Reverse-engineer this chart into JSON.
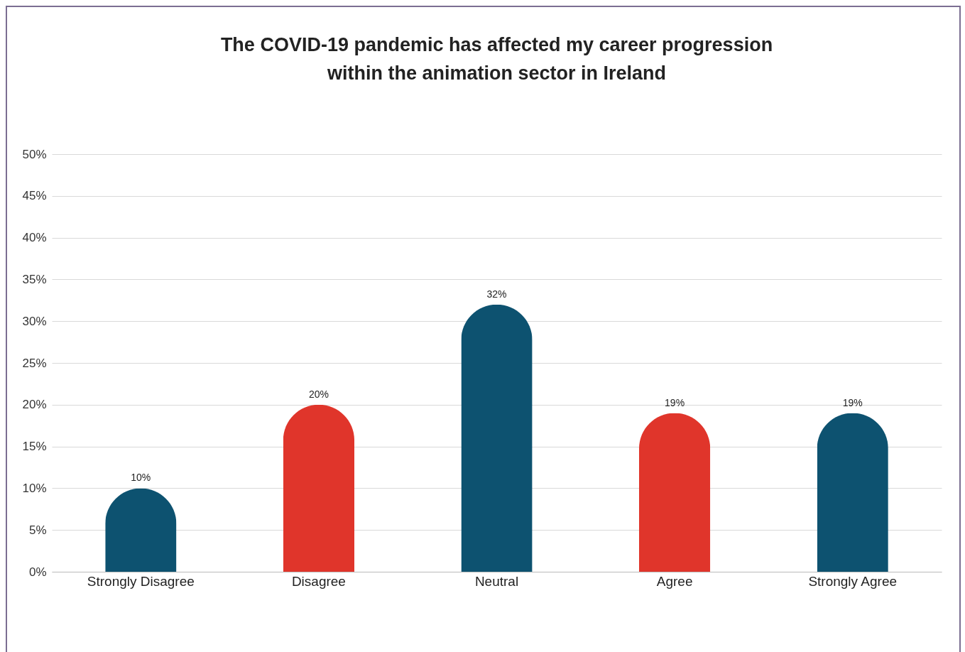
{
  "chart_data": {
    "type": "bar",
    "title": "The COVID-19 pandemic has affected my career progression within the animation sector in Ireland",
    "categories": [
      "Strongly Disagree",
      "Disagree",
      "Neutral",
      "Agree",
      "Strongly Agree"
    ],
    "values": [
      10,
      20,
      32,
      19,
      19
    ],
    "colors": [
      "#0d5270",
      "#e0352b",
      "#0d5270",
      "#e0352b",
      "#0d5270"
    ],
    "ylim": [
      0,
      50
    ],
    "yticks": [
      {
        "value": 0,
        "label": "0%"
      },
      {
        "value": 5,
        "label": "5%"
      },
      {
        "value": 10,
        "label": "10%"
      },
      {
        "value": 15,
        "label": "15%"
      },
      {
        "value": 20,
        "label": "20%"
      },
      {
        "value": 25,
        "label": "25%"
      },
      {
        "value": 30,
        "label": "30%"
      },
      {
        "value": 35,
        "label": "35%"
      },
      {
        "value": 40,
        "label": "40%"
      },
      {
        "value": 45,
        "label": "45%"
      },
      {
        "value": 50,
        "label": "50%"
      }
    ],
    "value_labels": [
      "10%",
      "20%",
      "32%",
      "19%",
      "19%"
    ],
    "grid": "y"
  }
}
